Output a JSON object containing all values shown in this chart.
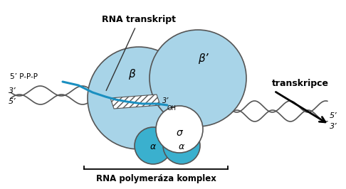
{
  "bg_color": "#ffffff",
  "light_blue": "#a8d4e8",
  "medium_blue": "#3ab0ce",
  "circle_edge": "#555555",
  "text_color": "#000000",
  "rna_color": "#1a8fc0",
  "dna_color": "#555555",
  "label_rna_transkript": "RNA transkript",
  "label_transkripce": "transkripce",
  "label_rna_komplex": "RNA polymeráza komplex",
  "label_beta": "β",
  "label_beta_prime": "β’",
  "label_sigma": "σ",
  "label_alpha1": "α",
  "label_alpha2": "α",
  "label_5p": "5’ P-P-P",
  "label_3p_left": "3’",
  "label_5p_left": "5’",
  "label_5p_right": "5’",
  "label_3p_right": "3’",
  "label_3oh": "3’",
  "label_oh": "OH",
  "figsize": [
    4.86,
    2.66
  ],
  "dpi": 100
}
